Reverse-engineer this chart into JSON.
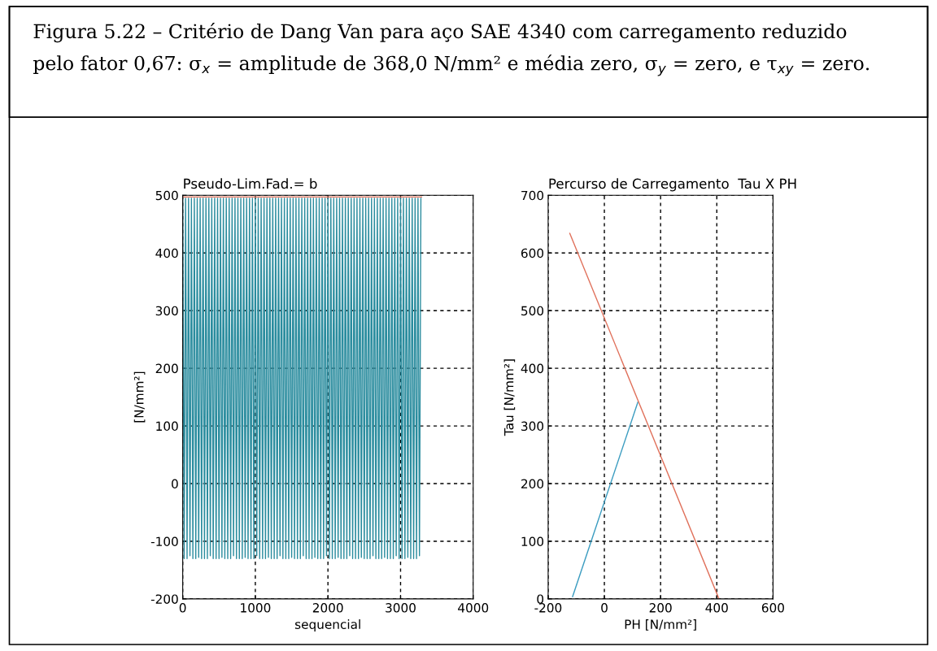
{
  "chart_data": [
    {
      "type": "line",
      "title": "Pseudo-Lim.Fad.= b",
      "xlabel": "sequencial",
      "ylabel": "[N/mm²]",
      "annotations": [
        "Figura 5.22 – Critério de Dang Van para aço SAE 4340 com carregamento reduzido\npelo fator 0,67: σ$_{x}$ = amplitude de 368,0 N/mm² e média zero, σ$_{y}$ = zero, e τ$_{xy}$ = zero."
      ],
      "xlim": [
        0,
        4000
      ],
      "xticks": [
        0,
        1000,
        2000,
        3000,
        4000
      ],
      "ylim": [
        -200,
        500
      ],
      "yticks": [
        -200,
        -100,
        0,
        100,
        200,
        300,
        400,
        500
      ],
      "grid": true,
      "line_style": "solid",
      "marker": "none",
      "series": [
        {
          "color": "#2a8c9e",
          "x": [
            0,
            20,
            40,
            60,
            80,
            100,
            120,
            140,
            160,
            180,
            200,
            220,
            240,
            260,
            280,
            300,
            320,
            340,
            360,
            380,
            400,
            420,
            440,
            460,
            480,
            500,
            520,
            540,
            560,
            580,
            600,
            620,
            640,
            660,
            680,
            700,
            720,
            740,
            760,
            780,
            800,
            820,
            840,
            860,
            880,
            900,
            920,
            940,
            960,
            980,
            1000,
            1020,
            1040,
            1060,
            1080,
            1100,
            1120,
            1140,
            1160,
            1180,
            1200,
            1220,
            1240,
            1260,
            1280,
            1300,
            1320,
            1340,
            1360,
            1380,
            1400,
            1420,
            1440,
            1460,
            1480,
            1500,
            1520,
            1540,
            1560,
            1580,
            1600,
            1620,
            1640,
            1660,
            1680,
            1700,
            1720,
            1740,
            1760,
            1780,
            1800,
            1820,
            1840,
            1860,
            1880,
            1900,
            1920,
            1940,
            1960,
            1980,
            2000,
            2020,
            2040,
            2060,
            2080,
            2100,
            2120,
            2140,
            2160,
            2180,
            2200,
            2220,
            2240,
            2260,
            2280,
            2300,
            2320,
            2340,
            2360,
            2380,
            2400,
            2420,
            2440,
            2460,
            2480,
            2500,
            2520,
            2540,
            2560,
            2580,
            2600,
            2620,
            2640,
            2660,
            2680,
            2700,
            2720,
            2740,
            2760,
            2780,
            2800,
            2820,
            2840,
            2860,
            2880,
            2900,
            2920,
            2940,
            2960,
            2980,
            3000,
            3020,
            3040,
            3060,
            3080,
            3100,
            3120,
            3140,
            3160,
            3180,
            3200,
            3220,
            3240,
            3260,
            3280
          ],
          "values": [
            495,
            -130,
            495,
            -130,
            495,
            -125,
            495,
            -130,
            495,
            -130,
            495,
            -128,
            495,
            -130,
            495,
            -130,
            495,
            -130,
            495,
            -125,
            495,
            -130,
            495,
            -130,
            495,
            -130,
            495,
            -128,
            495,
            -130,
            495,
            -130,
            495,
            -130,
            495,
            -125,
            495,
            -130,
            495,
            -130,
            495,
            -130,
            495,
            -128,
            495,
            -130,
            495,
            -130,
            495,
            -130,
            495,
            -125,
            495,
            -130,
            495,
            -130,
            495,
            -130,
            495,
            -128,
            495,
            -130,
            495,
            -130,
            495,
            -130,
            495,
            -125,
            495,
            -130,
            495,
            -130,
            495,
            -130,
            495,
            -128,
            495,
            -130,
            495,
            -130,
            495,
            -130,
            495,
            -125,
            495,
            -130,
            495,
            -130,
            495,
            -130,
            495,
            -128,
            495,
            -130,
            495,
            -130,
            495,
            -130,
            495,
            -125,
            495,
            -130,
            495,
            -130,
            495,
            -130,
            495,
            -128,
            495,
            -130,
            495,
            -130,
            495,
            -130,
            495,
            -125,
            495,
            -130,
            495,
            -130,
            495,
            -130,
            495,
            -128,
            495,
            -130,
            495,
            -130,
            495,
            -130,
            495,
            -125,
            495,
            -130,
            495,
            -130,
            495,
            -130,
            495,
            -128,
            495,
            -130,
            495,
            -130,
            495,
            -130,
            495,
            -125,
            495,
            -130,
            495,
            -130,
            495,
            -130,
            495,
            -128,
            495,
            -130,
            495,
            -130,
            495,
            -130,
            495,
            -125,
            495
          ]
        },
        {
          "color": "#e0705a",
          "x": [
            0,
            3290
          ],
          "values": [
            497,
            497
          ]
        }
      ]
    },
    {
      "type": "line",
      "title": "Percurso de Carregamento  Tau X PH",
      "xlabel": "PH [N/mm²]",
      "ylabel": "Tau [N/mm²]",
      "xlim": [
        -200,
        600
      ],
      "xticks": [
        -200,
        0,
        200,
        400,
        600
      ],
      "ylim": [
        0,
        700
      ],
      "yticks": [
        0,
        100,
        200,
        300,
        400,
        500,
        600,
        700
      ],
      "grid": true,
      "line_style": "solid",
      "marker": "none",
      "series": [
        {
          "color": "#3a9cc0",
          "x": [
            -113,
            119
          ],
          "values": [
            4,
            341
          ]
        },
        {
          "color": "#e0705a",
          "x": [
            407,
            -123
          ],
          "values": [
            1,
            634
          ]
        }
      ]
    }
  ]
}
